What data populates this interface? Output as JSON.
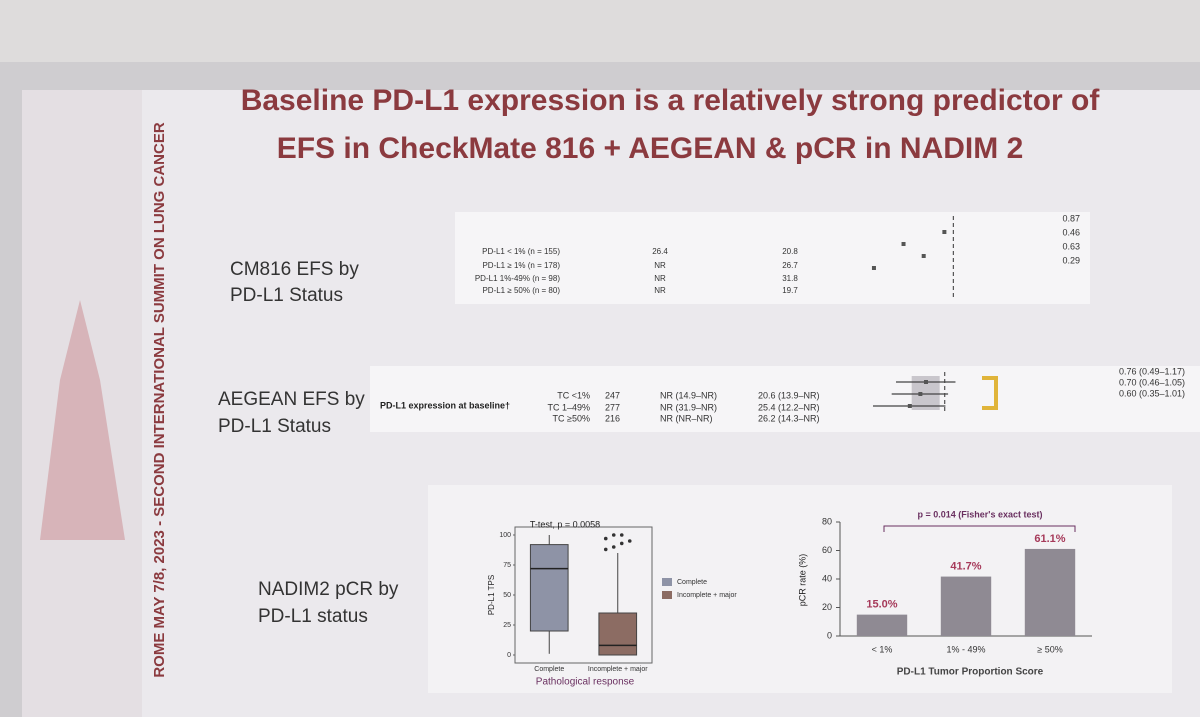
{
  "slide": {
    "title_lines": [
      "Baseline PD-L1 expression is a relatively strong predictor of",
      "EFS in CheckMate 816 + AEGEAN & pCR in NADIM 2"
    ],
    "banner": "ROME MAY 7/8, 2023 - SECOND INTERNATIONAL SUMMIT ON LUNG CANCER",
    "row_labels": [
      [
        "CM816 EFS by",
        "PD-L1 Status"
      ],
      [
        "AEGEAN EFS by",
        "PD-L1 Status"
      ],
      [
        "NADIM2 pCR by",
        "PD-L1 status"
      ]
    ]
  },
  "chart_data": [
    {
      "type": "forest",
      "name": "cm816",
      "rows": [
        [
          "PD-L1 < 1% (n = 155)",
          "26.4",
          "20.8"
        ],
        [
          "PD-L1 ≥ 1% (n = 178)",
          "NR",
          "26.7"
        ],
        [
          "PD-L1 1%-49% (n = 98)",
          "NR",
          "31.8"
        ],
        [
          "PD-L1 ≥ 50% (n = 80)",
          "NR",
          "19.7"
        ]
      ],
      "values": [
        0.87,
        0.46,
        0.63,
        0.29
      ],
      "color": "#555555",
      "xlim": [
        0.125,
        1.2
      ],
      "log": true,
      "ref_line": 1
    },
    {
      "type": "forest",
      "name": "aegean",
      "header": "PD-L1 expression at baseline†",
      "rows": [
        [
          "TC <1%",
          "247",
          "NR (14.9–NR)",
          "20.6 (13.9–NR)"
        ],
        [
          "TC 1–49%",
          "277",
          "NR (31.9–NR)",
          "25.4 (12.2–NR)"
        ],
        [
          "TC ≥50%",
          "216",
          "NR (NR–NR)",
          "26.2 (14.3–NR)"
        ]
      ],
      "values": [
        0.76,
        0.7,
        0.6
      ],
      "lo": [
        0.49,
        0.46,
        0.35
      ],
      "hi": [
        1.17,
        1.05,
        1.01
      ],
      "value_labels": [
        "0.76 (0.49–1.17)",
        "0.70 (0.46–1.05)",
        "0.60 (0.35–1.01)"
      ],
      "color": "#555555",
      "xlim": [
        0.25,
        1.25
      ],
      "log": true,
      "ref_line": 1
    },
    {
      "type": "box",
      "name": "nadim-box",
      "annotation": "T-test, p = 0.0058",
      "ylabel": "PD-L1 TPS",
      "xlabel": "Pathological response",
      "categories": [
        "Complete",
        "Incomplete + major"
      ],
      "series": [
        {
          "name": "Complete",
          "color": "#8e93a6",
          "min": 1,
          "q1": 20,
          "median": 72,
          "q3": 92,
          "max": 100,
          "outliers": []
        },
        {
          "name": "Incomplete + major",
          "color": "#8c6c63",
          "min": 0,
          "q1": 0,
          "median": 8,
          "q3": 35,
          "max": 85,
          "outliers": [
            88,
            90,
            93,
            95,
            97,
            100,
            100
          ]
        }
      ],
      "ylim": [
        0,
        100
      ],
      "yticks": [
        0,
        25,
        50,
        75,
        100
      ]
    },
    {
      "type": "bar",
      "name": "nadim-bar",
      "annotation": "p = 0.014 (Fisher's exact test)",
      "ylabel": "pCR rate (%)",
      "xlabel": "PD-L1 Tumor Proportion Score",
      "categories": [
        "< 1%",
        "1% - 49%",
        "≥ 50%"
      ],
      "values": [
        15.0,
        41.7,
        61.1
      ],
      "value_labels": [
        "15.0%",
        "41.7%",
        "61.1%"
      ],
      "color": "#8f8a93",
      "label_color": "#a63a5a",
      "ylim": [
        0,
        80
      ],
      "yticks": [
        0,
        20,
        40,
        60,
        80
      ]
    }
  ]
}
